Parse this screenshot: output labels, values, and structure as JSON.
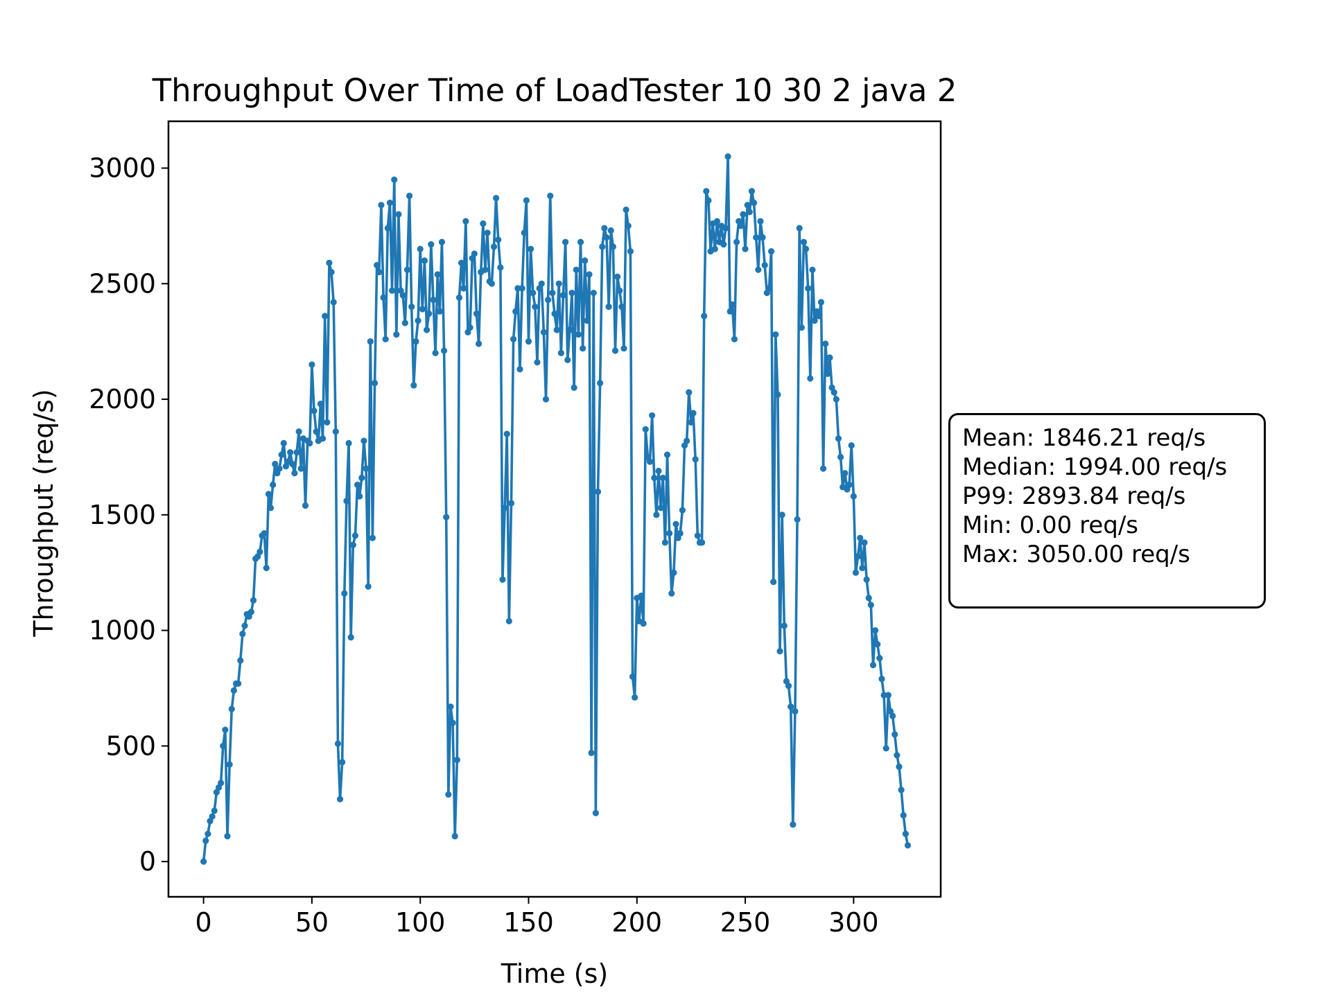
{
  "chart_data": {
    "type": "line",
    "title": "Throughput Over Time of LoadTester 10 30 2 java 2",
    "xlabel": "Time (s)",
    "ylabel": "Throughput (req/s)",
    "xlim": [
      -16.2,
      340.2
    ],
    "ylim": [
      -152.5,
      3202.5
    ],
    "xticks": [
      0,
      50,
      100,
      150,
      200,
      250,
      300
    ],
    "yticks": [
      0,
      500,
      1000,
      1500,
      2000,
      2500,
      3000
    ],
    "grid": false,
    "color": "#1f77b4",
    "series": [
      {
        "values": [
          0,
          90,
          120,
          175,
          195,
          220,
          300,
          320,
          340,
          500,
          570,
          110,
          420,
          660,
          740,
          770,
          770,
          870,
          985,
          1020,
          1070,
          1060,
          1080,
          1130,
          1310,
          1320,
          1340,
          1410,
          1420,
          1270,
          1590,
          1530,
          1630,
          1720,
          1680,
          1700,
          1760,
          1810,
          1710,
          1730,
          1770,
          1720,
          1680,
          1770,
          1860,
          1700,
          1830,
          1540,
          1820,
          1810,
          2150,
          1950,
          1860,
          1820,
          1980,
          1830,
          2360,
          1900,
          2590,
          2550,
          2420,
          1860,
          510,
          270,
          430,
          1160,
          1560,
          1810,
          970,
          1370,
          1410,
          1630,
          1580,
          1660,
          1820,
          1700,
          1190,
          2250,
          1400,
          2070,
          2580,
          2550,
          2840,
          2440,
          2260,
          2740,
          2850,
          2470,
          2950,
          2280,
          2800,
          2470,
          2450,
          2330,
          2560,
          2880,
          2400,
          2060,
          2250,
          2340,
          2650,
          2390,
          2600,
          2300,
          2370,
          2670,
          2430,
          2200,
          2540,
          2380,
          2680,
          2210,
          1490,
          290,
          670,
          600,
          110,
          440,
          2440,
          2590,
          2480,
          2770,
          2290,
          2310,
          2610,
          2630,
          2370,
          2240,
          2550,
          2760,
          2560,
          2720,
          2510,
          2500,
          2660,
          2870,
          2690,
          2570,
          1220,
          1530,
          1850,
          1040,
          1550,
          2260,
          2380,
          2480,
          2130,
          2480,
          2720,
          2860,
          2250,
          2650,
          2460,
          2400,
          2160,
          2480,
          2500,
          2290,
          2000,
          2430,
          2880,
          2460,
          2370,
          2300,
          2500,
          2200,
          2450,
          2680,
          2170,
          2300,
          2460,
          2050,
          2560,
          2280,
          2680,
          2220,
          2600,
          2340,
          2540,
          470,
          2460,
          210,
          1600,
          2070,
          2660,
          2740,
          2700,
          2400,
          2730,
          2660,
          2210,
          2530,
          2470,
          2400,
          2220,
          2820,
          2750,
          2640,
          800,
          710,
          1140,
          1040,
          1150,
          1030,
          1870,
          1750,
          1730,
          1930,
          1660,
          1500,
          1690,
          1530,
          1660,
          1380,
          1760,
          1420,
          1160,
          1250,
          1460,
          1400,
          1420,
          1520,
          1800,
          1820,
          2030,
          1900,
          1940,
          1740,
          1410,
          1380,
          1380,
          2360,
          2900,
          2860,
          2640,
          2760,
          2650,
          2770,
          2680,
          2750,
          2670,
          2740,
          3050,
          2380,
          2410,
          2260,
          2680,
          2770,
          2750,
          2800,
          2650,
          2840,
          2810,
          2900,
          2850,
          2700,
          2560,
          2770,
          2700,
          2580,
          2460,
          2480,
          2640,
          1210,
          2280,
          2020,
          910,
          1500,
          1020,
          780,
          760,
          670,
          160,
          650,
          1480,
          2740,
          2310,
          2680,
          2650,
          2480,
          2090,
          2560,
          2340,
          2380,
          2360,
          2420,
          1700,
          2240,
          2110,
          2180,
          2050,
          2030,
          2000,
          1830,
          1750,
          1620,
          1680,
          1610,
          1630,
          1800,
          1580,
          1250,
          1320,
          1400,
          1270,
          1380,
          1220,
          1140,
          1110,
          850,
          1000,
          940,
          880,
          790,
          720,
          490,
          720,
          650,
          630,
          550,
          460,
          410,
          310,
          200,
          120,
          70
        ]
      }
    ]
  },
  "stats": {
    "mean": "Mean: 1846.21 req/s",
    "median": "Median: 1994.00 req/s",
    "p99": "P99: 2893.84 req/s",
    "min": "Min: 0.00 req/s",
    "max": "Max: 3050.00 req/s"
  }
}
